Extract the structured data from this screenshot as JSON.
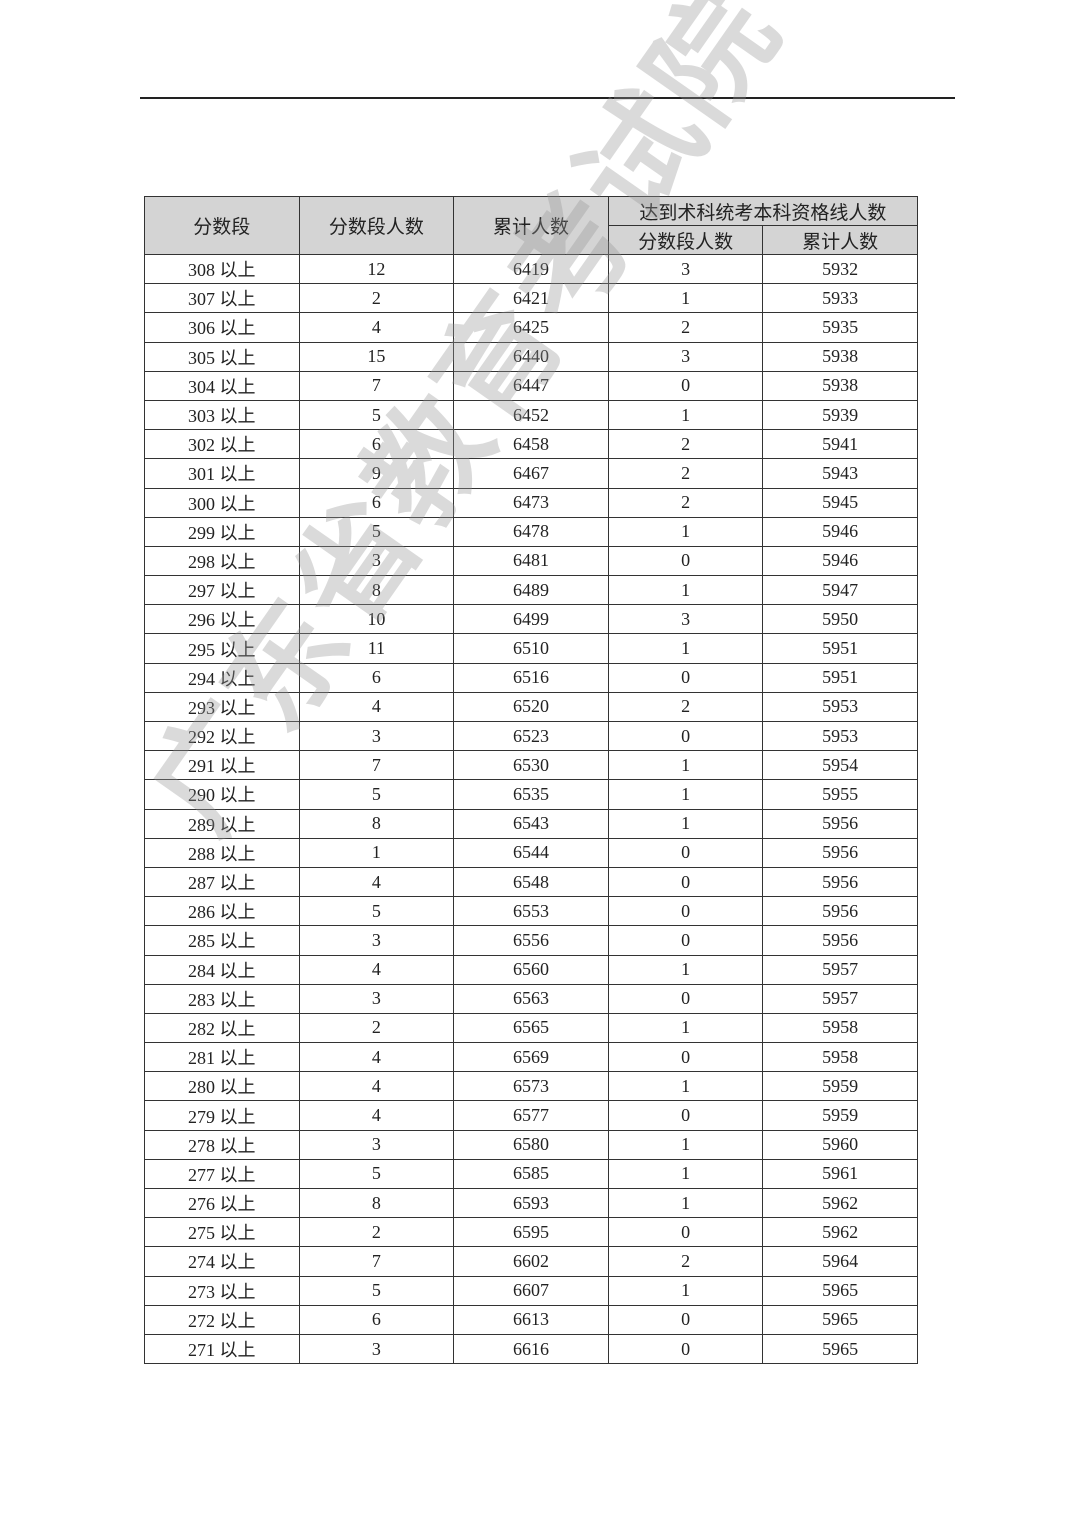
{
  "header": {
    "col_score": "分数段",
    "col_count": "分数段人数",
    "col_cumulative": "累计人数",
    "group_qualified": "达到术科统考本科资格线人数",
    "sub_count": "分数段人数",
    "sub_cumulative": "累计人数"
  },
  "watermark": "广东省教育考试院",
  "rows": [
    [
      "308 以上",
      "12",
      "6419",
      "3",
      "5932"
    ],
    [
      "307 以上",
      "2",
      "6421",
      "1",
      "5933"
    ],
    [
      "306 以上",
      "4",
      "6425",
      "2",
      "5935"
    ],
    [
      "305 以上",
      "15",
      "6440",
      "3",
      "5938"
    ],
    [
      "304 以上",
      "7",
      "6447",
      "0",
      "5938"
    ],
    [
      "303 以上",
      "5",
      "6452",
      "1",
      "5939"
    ],
    [
      "302 以上",
      "6",
      "6458",
      "2",
      "5941"
    ],
    [
      "301 以上",
      "9",
      "6467",
      "2",
      "5943"
    ],
    [
      "300 以上",
      "6",
      "6473",
      "2",
      "5945"
    ],
    [
      "299 以上",
      "5",
      "6478",
      "1",
      "5946"
    ],
    [
      "298 以上",
      "3",
      "6481",
      "0",
      "5946"
    ],
    [
      "297 以上",
      "8",
      "6489",
      "1",
      "5947"
    ],
    [
      "296 以上",
      "10",
      "6499",
      "3",
      "5950"
    ],
    [
      "295 以上",
      "11",
      "6510",
      "1",
      "5951"
    ],
    [
      "294 以上",
      "6",
      "6516",
      "0",
      "5951"
    ],
    [
      "293 以上",
      "4",
      "6520",
      "2",
      "5953"
    ],
    [
      "292 以上",
      "3",
      "6523",
      "0",
      "5953"
    ],
    [
      "291 以上",
      "7",
      "6530",
      "1",
      "5954"
    ],
    [
      "290 以上",
      "5",
      "6535",
      "1",
      "5955"
    ],
    [
      "289 以上",
      "8",
      "6543",
      "1",
      "5956"
    ],
    [
      "288 以上",
      "1",
      "6544",
      "0",
      "5956"
    ],
    [
      "287 以上",
      "4",
      "6548",
      "0",
      "5956"
    ],
    [
      "286 以上",
      "5",
      "6553",
      "0",
      "5956"
    ],
    [
      "285 以上",
      "3",
      "6556",
      "0",
      "5956"
    ],
    [
      "284 以上",
      "4",
      "6560",
      "1",
      "5957"
    ],
    [
      "283 以上",
      "3",
      "6563",
      "0",
      "5957"
    ],
    [
      "282 以上",
      "2",
      "6565",
      "1",
      "5958"
    ],
    [
      "281 以上",
      "4",
      "6569",
      "0",
      "5958"
    ],
    [
      "280 以上",
      "4",
      "6573",
      "1",
      "5959"
    ],
    [
      "279 以上",
      "4",
      "6577",
      "0",
      "5959"
    ],
    [
      "278 以上",
      "3",
      "6580",
      "1",
      "5960"
    ],
    [
      "277 以上",
      "5",
      "6585",
      "1",
      "5961"
    ],
    [
      "276 以上",
      "8",
      "6593",
      "1",
      "5962"
    ],
    [
      "275 以上",
      "2",
      "6595",
      "0",
      "5962"
    ],
    [
      "274 以上",
      "7",
      "6602",
      "2",
      "5964"
    ],
    [
      "273 以上",
      "5",
      "6607",
      "1",
      "5965"
    ],
    [
      "272 以上",
      "6",
      "6613",
      "0",
      "5965"
    ],
    [
      "271 以上",
      "3",
      "6616",
      "0",
      "5965"
    ]
  ]
}
